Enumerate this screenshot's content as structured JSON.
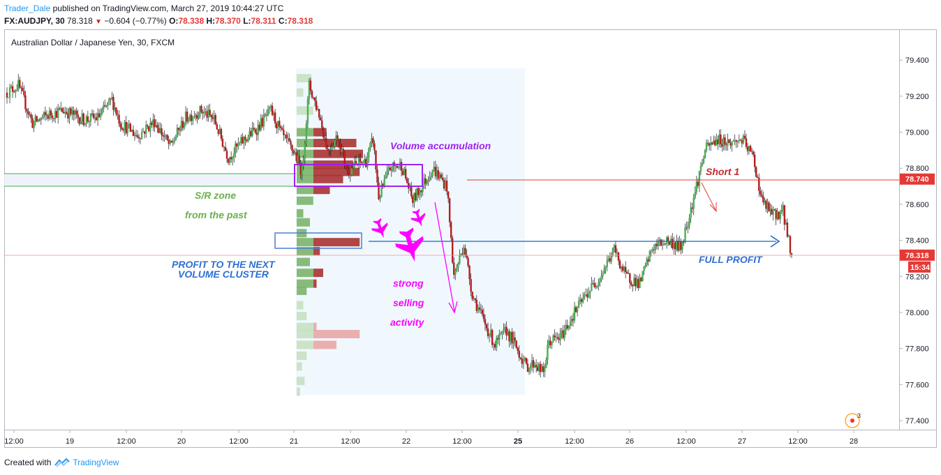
{
  "header": {
    "author": "Trader_Dale",
    "published": "published on TradingView.com, March 27, 2019 10:44:27 UTC",
    "symbol": "FX:AUDJPY, 30",
    "last": "78.318",
    "change": "−0.604 (−0.77%)",
    "o_label": "O:",
    "o_value": "78.338",
    "h_label": "H:",
    "h_value": "78.370",
    "l_label": "L:",
    "l_value": "78.311",
    "c_label": "C:",
    "c_value": "78.318"
  },
  "footer": {
    "created_with": "Created with",
    "brand": "TradingView"
  },
  "badges": {
    "alert_count": "3"
  },
  "colors": {
    "up": "#4caf50",
    "down": "#b71c1c",
    "wick": "#131722",
    "sr_zone": "#4caf50",
    "short_line": "#e53935",
    "profit_arrow": "#1565c0",
    "volume_box": "#a020f0",
    "magenta": "#ff00ff"
  },
  "chart_data": {
    "type": "candlestick",
    "title": "Australian Dollar / Japanese Yen, 30, FXCM",
    "xlabel": "",
    "ylabel": "",
    "ylim": [
      77.3,
      79.55
    ],
    "y_ticks": [
      "79.400",
      "79.200",
      "79.000",
      "78.800",
      "78.600",
      "78.400",
      "78.200",
      "78.000",
      "77.800",
      "77.600",
      "77.400"
    ],
    "x_ticks": [
      {
        "label": "12:00",
        "bold": false
      },
      {
        "label": "19",
        "bold": false
      },
      {
        "label": "12:00",
        "bold": false
      },
      {
        "label": "20",
        "bold": false
      },
      {
        "label": "12:00",
        "bold": false
      },
      {
        "label": "21",
        "bold": false
      },
      {
        "label": "12:00",
        "bold": false
      },
      {
        "label": "22",
        "bold": false
      },
      {
        "label": "12:00",
        "bold": false
      },
      {
        "label": "25",
        "bold": true
      },
      {
        "label": "12:00",
        "bold": false
      },
      {
        "label": "26",
        "bold": false
      },
      {
        "label": "12:00",
        "bold": false
      },
      {
        "label": "27",
        "bold": false
      },
      {
        "label": "12:00",
        "bold": false
      },
      {
        "label": "28",
        "bold": false
      }
    ],
    "price_labels": [
      {
        "value": 78.74,
        "text": "78.740",
        "color": "#e53935"
      },
      {
        "value": 78.318,
        "text": "78.318",
        "color": "#e53935"
      }
    ],
    "countdown": "15:34",
    "anchors": [
      [
        0,
        79.22
      ],
      [
        8,
        79.26
      ],
      [
        18,
        79.05
      ],
      [
        30,
        79.1
      ],
      [
        40,
        79.12
      ],
      [
        54,
        79.07
      ],
      [
        64,
        79.08
      ],
      [
        74,
        79.18
      ],
      [
        80,
        79.05
      ],
      [
        92,
        78.98
      ],
      [
        104,
        79.06
      ],
      [
        115,
        78.92
      ],
      [
        126,
        79.08
      ],
      [
        137,
        79.12
      ],
      [
        146,
        79.07
      ],
      [
        156,
        78.86
      ],
      [
        166,
        78.95
      ],
      [
        176,
        79.02
      ],
      [
        186,
        79.12
      ],
      [
        194,
        78.98
      ],
      [
        203,
        78.88
      ],
      [
        208,
        78.78
      ],
      [
        213,
        79.26
      ],
      [
        220,
        79.1
      ],
      [
        226,
        78.9
      ],
      [
        233,
        78.98
      ],
      [
        240,
        78.78
      ],
      [
        246,
        78.82
      ],
      [
        253,
        78.84
      ],
      [
        258,
        78.96
      ],
      [
        262,
        78.64
      ],
      [
        270,
        78.8
      ],
      [
        278,
        78.82
      ],
      [
        286,
        78.62
      ],
      [
        294,
        78.72
      ],
      [
        300,
        78.8
      ],
      [
        304,
        78.76
      ],
      [
        310,
        78.7
      ],
      [
        315,
        78.2
      ],
      [
        322,
        78.38
      ],
      [
        328,
        78.1
      ],
      [
        336,
        77.95
      ],
      [
        344,
        77.82
      ],
      [
        352,
        77.9
      ],
      [
        358,
        77.82
      ],
      [
        366,
        77.7
      ],
      [
        372,
        77.72
      ],
      [
        378,
        77.66
      ],
      [
        382,
        77.84
      ],
      [
        390,
        77.86
      ],
      [
        400,
        78.0
      ],
      [
        410,
        78.12
      ],
      [
        418,
        78.2
      ],
      [
        428,
        78.35
      ],
      [
        436,
        78.2
      ],
      [
        446,
        78.16
      ],
      [
        455,
        78.36
      ],
      [
        465,
        78.4
      ],
      [
        475,
        78.36
      ],
      [
        484,
        78.64
      ],
      [
        492,
        78.9
      ],
      [
        500,
        78.96
      ],
      [
        510,
        78.94
      ],
      [
        518,
        78.96
      ],
      [
        526,
        78.86
      ],
      [
        532,
        78.62
      ],
      [
        540,
        78.54
      ],
      [
        547,
        78.56
      ],
      [
        553,
        78.32
      ]
    ],
    "candle_count": 554,
    "volume_profile_day21": [
      [
        79.3,
        0.22
      ],
      [
        79.22,
        0.1
      ],
      [
        79.12,
        0.25
      ],
      [
        79.0,
        0.45
      ],
      [
        78.94,
        0.9
      ],
      [
        78.88,
        1.0
      ],
      [
        78.82,
        0.85
      ],
      [
        78.78,
        0.95
      ],
      [
        78.74,
        0.7
      ],
      [
        78.68,
        0.5
      ],
      [
        78.62,
        0.25
      ],
      [
        78.55,
        0.1
      ],
      [
        78.5,
        0.2
      ],
      [
        78.44,
        0.15
      ],
      [
        78.39,
        0.95
      ],
      [
        78.34,
        0.35
      ],
      [
        78.28,
        0.2
      ],
      [
        78.22,
        0.4
      ],
      [
        78.16,
        0.3
      ],
      [
        78.12,
        0.15
      ],
      [
        78.04,
        0.1
      ],
      [
        77.98,
        0.15
      ],
      [
        77.92,
        0.3
      ],
      [
        77.88,
        0.95
      ],
      [
        77.82,
        0.6
      ],
      [
        77.76,
        0.15
      ],
      [
        77.7,
        0.08
      ],
      [
        77.62,
        0.12
      ],
      [
        77.56,
        0.05
      ]
    ],
    "annotations": {
      "sr_zone_1": "S/R zone",
      "sr_zone_2": "from the past",
      "volume_accumulation": "Volume accumulation",
      "profit_1": "PROFIT TO THE NEXT",
      "profit_2": "VOLUME CLUSTER",
      "strong_1": "strong",
      "strong_2": "selling",
      "strong_3": "activity",
      "short": "Short 1",
      "full_profit": "FULL PROFIT"
    }
  }
}
